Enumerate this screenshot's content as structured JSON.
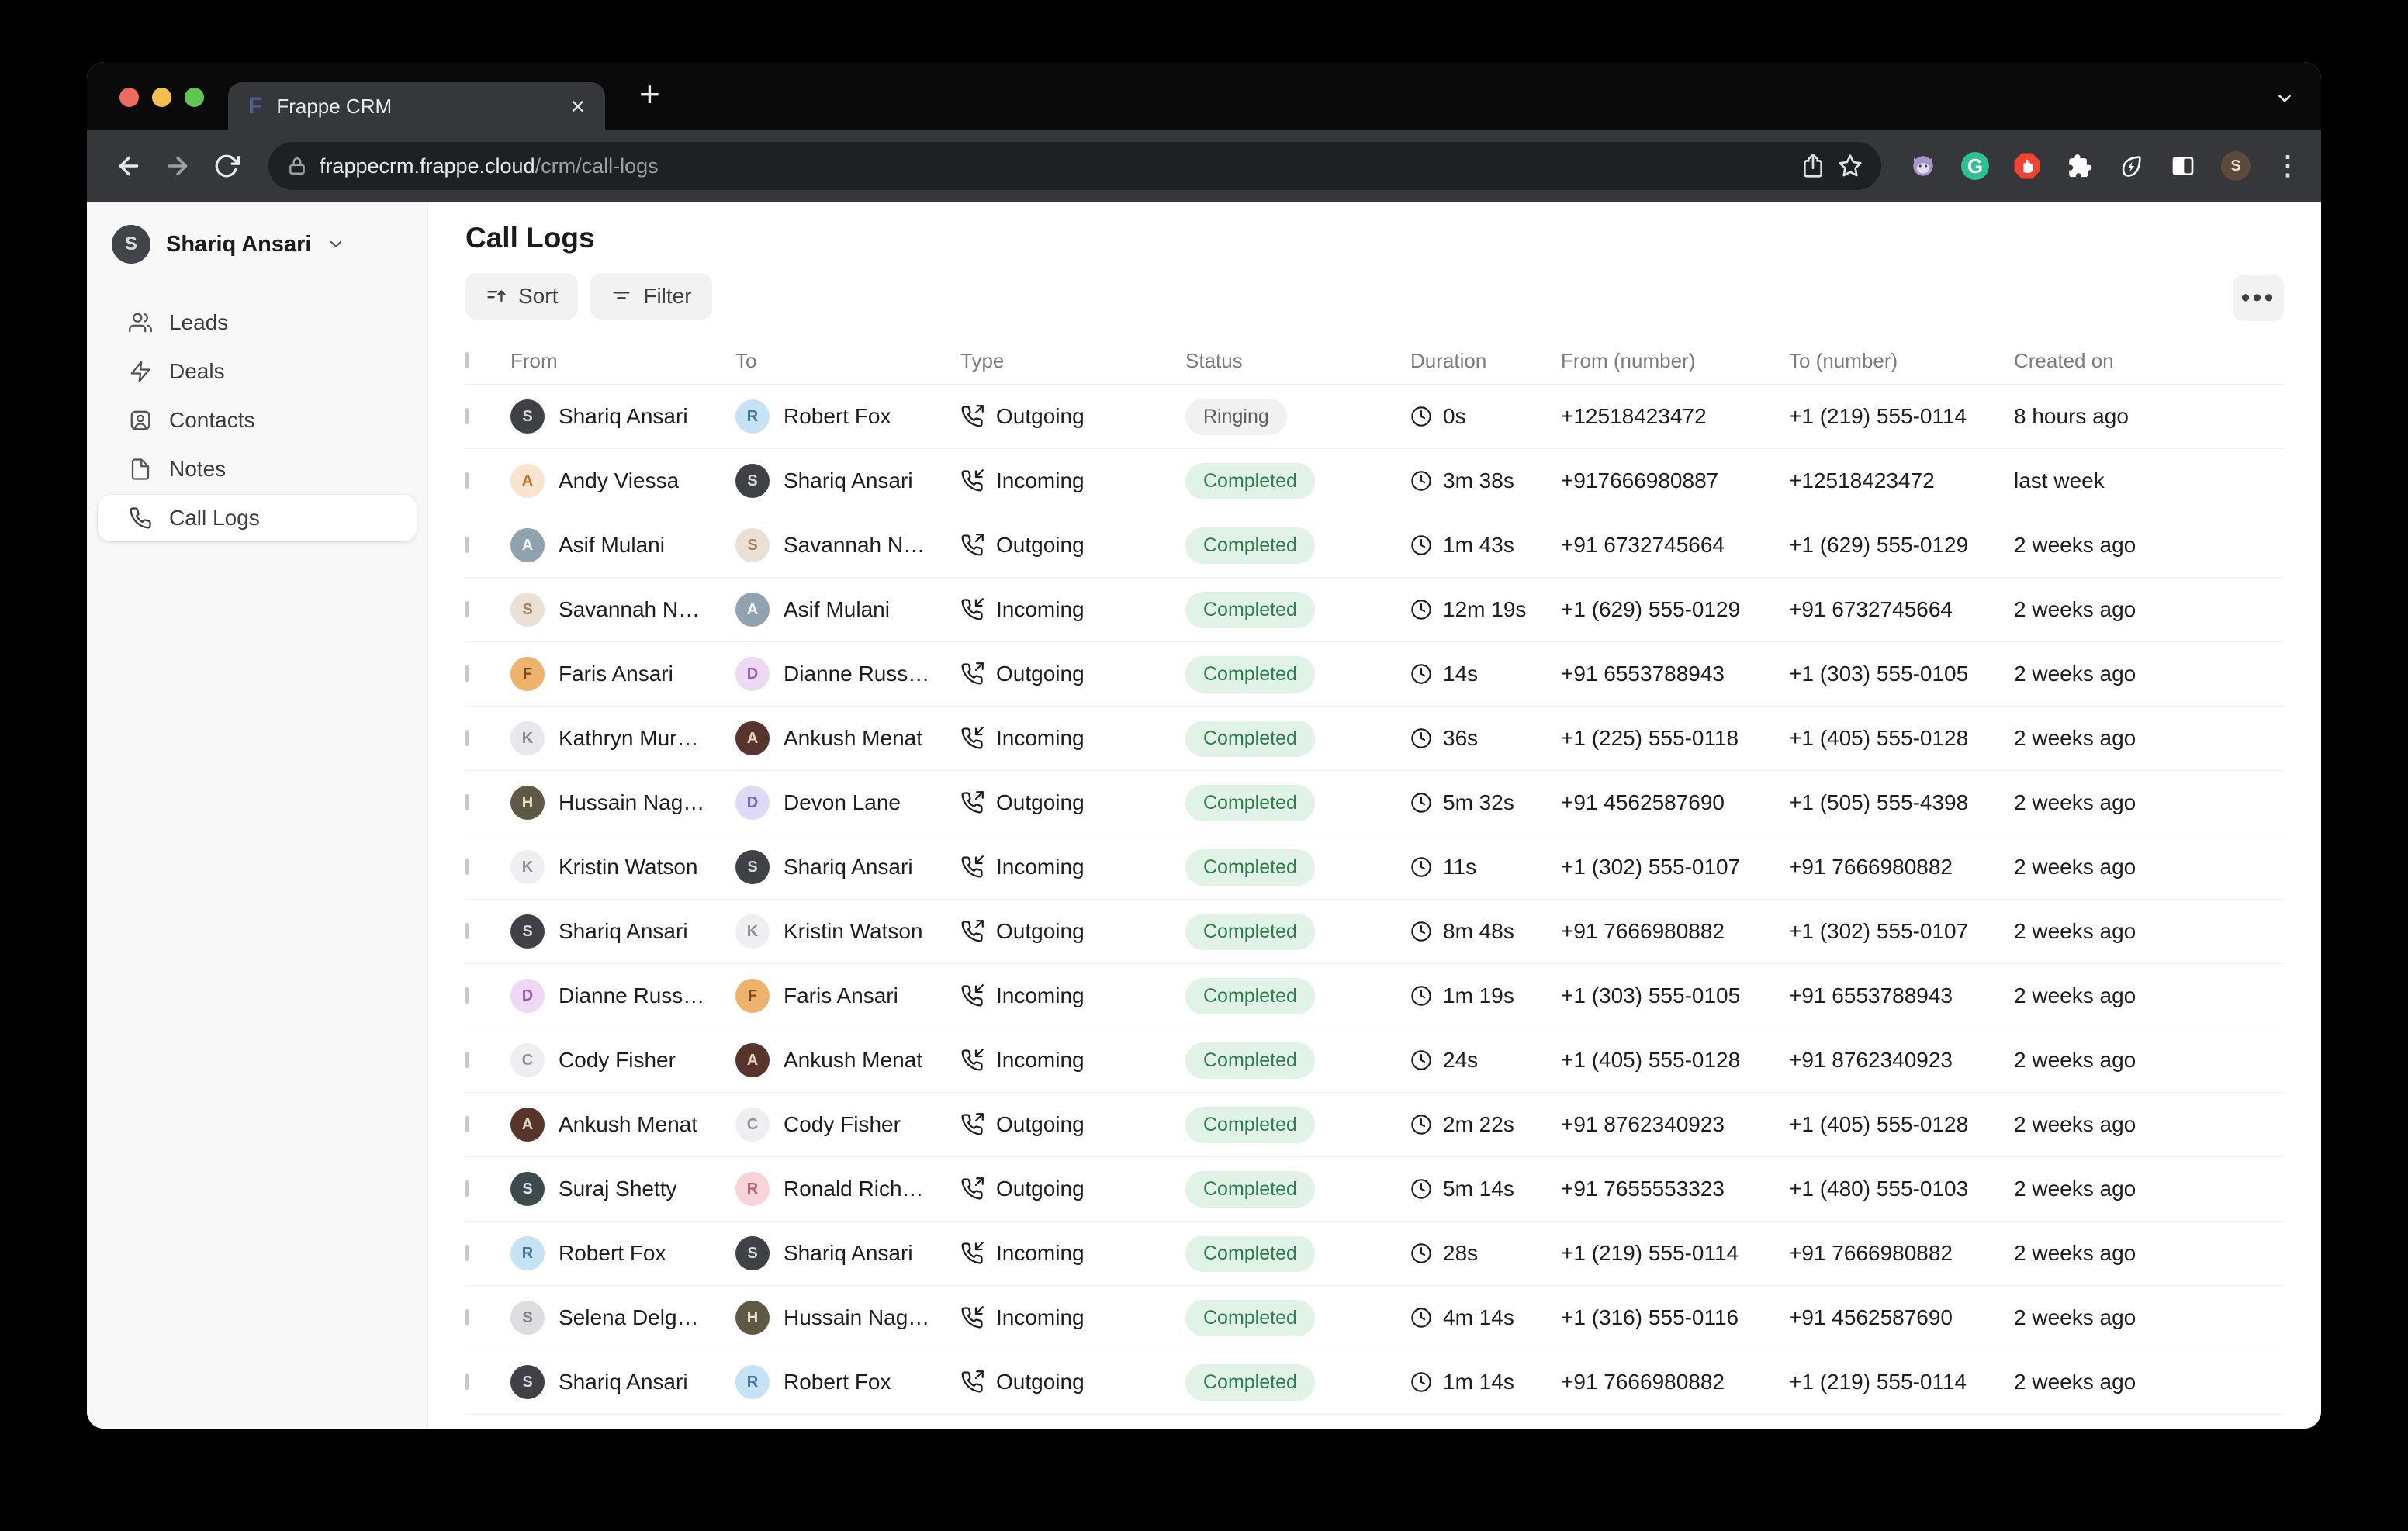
{
  "browser": {
    "tab_title": "Frappe CRM",
    "favicon_letter": "F",
    "close_glyph": "×",
    "newtab_glyph": "+",
    "url_host": "frappecrm.frappe.cloud",
    "url_path": "/crm/call-logs",
    "grammarly_letter": "G",
    "avatar_initial": "S",
    "menu_glyph": "⋮"
  },
  "sidebar": {
    "user": {
      "name": "Shariq Ansari",
      "initial": "S"
    },
    "items": [
      {
        "label": "Leads"
      },
      {
        "label": "Deals"
      },
      {
        "label": "Contacts"
      },
      {
        "label": "Notes"
      },
      {
        "label": "Call Logs"
      }
    ]
  },
  "header": {
    "title": "Call Logs",
    "sort_label": "Sort",
    "filter_label": "Filter",
    "more_glyph": "•••"
  },
  "colors": {
    "completed_bg": "#e1f2e7",
    "completed_text": "#2e7d4e",
    "ringing_bg": "#f1f1f2",
    "ringing_text": "#5f5f63",
    "traffic_red": "#ed6a5e",
    "traffic_yellow": "#f5bf4f",
    "traffic_green": "#61c554"
  },
  "table": {
    "columns": [
      "From",
      "To",
      "Type",
      "Status",
      "Duration",
      "From (number)",
      "To (number)",
      "Created on"
    ],
    "rows": [
      {
        "from": {
          "name": "Shariq Ansari",
          "initial": "S",
          "bg": "#3f4147",
          "fg": "#d8d9dd"
        },
        "to": {
          "name": "Robert Fox",
          "initial": "R",
          "bg": "#c5e3f5",
          "fg": "#4a7596"
        },
        "type": "Outgoing",
        "status": "Ringing",
        "status_kind": "gray",
        "duration": "0s",
        "from_number": "+12518423472",
        "to_number": "+1 (219) 555-0114",
        "created": "8 hours ago"
      },
      {
        "from": {
          "name": "Andy Viessa",
          "initial": "A",
          "bg": "#fbe4cf",
          "fg": "#b3743a"
        },
        "to": {
          "name": "Shariq Ansari",
          "initial": "S",
          "bg": "#3f4147",
          "fg": "#d8d9dd"
        },
        "type": "Incoming",
        "status": "Completed",
        "status_kind": "green",
        "duration": "3m 38s",
        "from_number": "+917666980887",
        "to_number": "+12518423472",
        "created": "last week"
      },
      {
        "from": {
          "name": "Asif Mulani",
          "initial": "A",
          "bg": "#90a2ad",
          "fg": "#f2f4f5"
        },
        "to": {
          "name": "Savannah N…",
          "initial": "S",
          "bg": "#eae0d6",
          "fg": "#a5805c"
        },
        "type": "Outgoing",
        "status": "Completed",
        "status_kind": "green",
        "duration": "1m 43s",
        "from_number": "+91 6732745664",
        "to_number": "+1 (629) 555-0129",
        "created": "2 weeks ago"
      },
      {
        "from": {
          "name": "Savannah N…",
          "initial": "S",
          "bg": "#eae0d6",
          "fg": "#a5805c"
        },
        "to": {
          "name": "Asif Mulani",
          "initial": "A",
          "bg": "#90a2ad",
          "fg": "#f2f4f5"
        },
        "type": "Incoming",
        "status": "Completed",
        "status_kind": "green",
        "duration": "12m 19s",
        "from_number": "+1 (629) 555-0129",
        "to_number": "+91 6732745664",
        "created": "2 weeks ago"
      },
      {
        "from": {
          "name": "Faris Ansari",
          "initial": "F",
          "bg": "#edb36d",
          "fg": "#7c4620"
        },
        "to": {
          "name": "Dianne Russ…",
          "initial": "D",
          "bg": "#eed9f4",
          "fg": "#9d5fb3"
        },
        "type": "Outgoing",
        "status": "Completed",
        "status_kind": "green",
        "duration": "14s",
        "from_number": "+91 6553788943",
        "to_number": "+1 (303) 555-0105",
        "created": "2 weeks ago"
      },
      {
        "from": {
          "name": "Kathryn Mur…",
          "initial": "K",
          "bg": "#e8e8ec",
          "fg": "#85858f"
        },
        "to": {
          "name": "Ankush Menat",
          "initial": "A",
          "bg": "#57342c",
          "fg": "#e9d0c4"
        },
        "type": "Incoming",
        "status": "Completed",
        "status_kind": "green",
        "duration": "36s",
        "from_number": "+1 (225) 555-0118",
        "to_number": "+1 (405) 555-0128",
        "created": "2 weeks ago"
      },
      {
        "from": {
          "name": "Hussain Nag…",
          "initial": "H",
          "bg": "#5f5845",
          "fg": "#e9e2cf"
        },
        "to": {
          "name": "Devon Lane",
          "initial": "D",
          "bg": "#dfd9f8",
          "fg": "#7463b0"
        },
        "type": "Outgoing",
        "status": "Completed",
        "status_kind": "green",
        "duration": "5m 32s",
        "from_number": "+91 4562587690",
        "to_number": "+1 (505) 555-4398",
        "created": "2 weeks ago"
      },
      {
        "from": {
          "name": "Kristin Watson",
          "initial": "K",
          "bg": "#efeff1",
          "fg": "#8f8f98"
        },
        "to": {
          "name": "Shariq Ansari",
          "initial": "S",
          "bg": "#3f4147",
          "fg": "#d8d9dd"
        },
        "type": "Incoming",
        "status": "Completed",
        "status_kind": "green",
        "duration": "11s",
        "from_number": "+1 (302) 555-0107",
        "to_number": "+91 7666980882",
        "created": "2 weeks ago"
      },
      {
        "from": {
          "name": "Shariq Ansari",
          "initial": "S",
          "bg": "#3f4147",
          "fg": "#d8d9dd"
        },
        "to": {
          "name": "Kristin Watson",
          "initial": "K",
          "bg": "#efeff1",
          "fg": "#8f8f98"
        },
        "type": "Outgoing",
        "status": "Completed",
        "status_kind": "green",
        "duration": "8m 48s",
        "from_number": "+91 7666980882",
        "to_number": "+1 (302) 555-0107",
        "created": "2 weeks ago"
      },
      {
        "from": {
          "name": "Dianne Russ…",
          "initial": "D",
          "bg": "#eed9f4",
          "fg": "#9d5fb3"
        },
        "to": {
          "name": "Faris Ansari",
          "initial": "F",
          "bg": "#edb36d",
          "fg": "#7c4620"
        },
        "type": "Incoming",
        "status": "Completed",
        "status_kind": "green",
        "duration": "1m 19s",
        "from_number": "+1 (303) 555-0105",
        "to_number": "+91 6553788943",
        "created": "2 weeks ago"
      },
      {
        "from": {
          "name": "Cody Fisher",
          "initial": "C",
          "bg": "#efeff1",
          "fg": "#8f8f98"
        },
        "to": {
          "name": "Ankush Menat",
          "initial": "A",
          "bg": "#57342c",
          "fg": "#e9d0c4"
        },
        "type": "Incoming",
        "status": "Completed",
        "status_kind": "green",
        "duration": "24s",
        "from_number": "+1 (405) 555-0128",
        "to_number": "+91 8762340923",
        "created": "2 weeks ago"
      },
      {
        "from": {
          "name": "Ankush Menat",
          "initial": "A",
          "bg": "#57342c",
          "fg": "#e9d0c4"
        },
        "to": {
          "name": "Cody Fisher",
          "initial": "C",
          "bg": "#efeff1",
          "fg": "#8f8f98"
        },
        "type": "Outgoing",
        "status": "Completed",
        "status_kind": "green",
        "duration": "2m 22s",
        "from_number": "+91 8762340923",
        "to_number": "+1 (405) 555-0128",
        "created": "2 weeks ago"
      },
      {
        "from": {
          "name": "Suraj Shetty",
          "initial": "S",
          "bg": "#3d4b4f",
          "fg": "#dfe8ea"
        },
        "to": {
          "name": "Ronald Rich…",
          "initial": "R",
          "bg": "#f8d3d8",
          "fg": "#b06570"
        },
        "type": "Outgoing",
        "status": "Completed",
        "status_kind": "green",
        "duration": "5m 14s",
        "from_number": "+91 7655553323",
        "to_number": "+1 (480) 555-0103",
        "created": "2 weeks ago"
      },
      {
        "from": {
          "name": "Robert Fox",
          "initial": "R",
          "bg": "#c5e3f5",
          "fg": "#4a7596"
        },
        "to": {
          "name": "Shariq Ansari",
          "initial": "S",
          "bg": "#3f4147",
          "fg": "#d8d9dd"
        },
        "type": "Incoming",
        "status": "Completed",
        "status_kind": "green",
        "duration": "28s",
        "from_number": "+1 (219) 555-0114",
        "to_number": "+91 7666980882",
        "created": "2 weeks ago"
      },
      {
        "from": {
          "name": "Selena Delg…",
          "initial": "S",
          "bg": "#dcdce1",
          "fg": "#808089"
        },
        "to": {
          "name": "Hussain Nag…",
          "initial": "H",
          "bg": "#5f5845",
          "fg": "#e9e2cf"
        },
        "type": "Incoming",
        "status": "Completed",
        "status_kind": "green",
        "duration": "4m 14s",
        "from_number": "+1 (316) 555-0116",
        "to_number": "+91 4562587690",
        "created": "2 weeks ago"
      },
      {
        "from": {
          "name": "Shariq Ansari",
          "initial": "S",
          "bg": "#3f4147",
          "fg": "#d8d9dd"
        },
        "to": {
          "name": "Robert Fox",
          "initial": "R",
          "bg": "#c5e3f5",
          "fg": "#4a7596"
        },
        "type": "Outgoing",
        "status": "Completed",
        "status_kind": "green",
        "duration": "1m 14s",
        "from_number": "+91 7666980882",
        "to_number": "+1 (219) 555-0114",
        "created": "2 weeks ago"
      }
    ],
    "partial_row": {
      "from": {
        "name": "",
        "initial": "",
        "bg": "#b5a472",
        "fg": "#5a4f2e"
      },
      "to": {
        "name": "",
        "initial": "",
        "bg": "#ededf0",
        "fg": "#8a8a92"
      }
    }
  }
}
